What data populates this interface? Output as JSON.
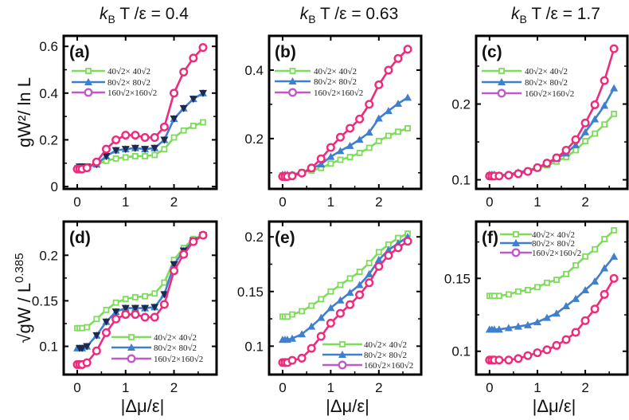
{
  "column_titles": [
    "k_B T / ε = 0.4",
    "k_B T / ε = 0.63",
    "k_B T / ε = 1.7"
  ],
  "column_titles_parts": [
    {
      "k": "k",
      "sub": "B",
      "rest": "T /ε = 0.4"
    },
    {
      "k": "k",
      "sub": "B",
      "rest": "T /ε = 0.63"
    },
    {
      "k": "k",
      "sub": "B",
      "rest": "T /ε = 1.7"
    }
  ],
  "ylabel_top": "gW²/ ln L",
  "ylabel_bottom": "√g W / L^0.385",
  "ylabel_bottom_parts": {
    "main": "√gW / L",
    "sup": "0.385"
  },
  "xlabel": "|Δμ/ε|",
  "colors": {
    "green": "#7ddc5a",
    "blue": "#3f7fcf",
    "pink": "#ee2a7b",
    "legend_pink": "#c259c8",
    "navy": "#1c2a50"
  },
  "legend_labels": [
    "40√2× 40√2",
    "80√2× 80√2",
    "160√2×160√2"
  ],
  "chart_data": [
    {
      "type": "line",
      "panel": "(a)",
      "title": "k_B T / ε = 0.4",
      "xlabel": "",
      "ylabel": "gW²/ ln L",
      "xlim": [
        -0.28,
        2.88
      ],
      "ylim": [
        -0.01,
        0.645
      ],
      "xticks": [
        0,
        1,
        2
      ],
      "yticks": [
        "0",
        "0.2",
        "0.4",
        "0.6"
      ],
      "yminor": [
        0.1,
        0.3,
        0.5
      ],
      "legend": "upper-left",
      "blue_overlay": "navy-down-triangle",
      "x": [
        0,
        0.05,
        0.1,
        0.2,
        0.4,
        0.6,
        0.8,
        1.0,
        1.2,
        1.4,
        1.6,
        1.8,
        2.0,
        2.2,
        2.4,
        2.6
      ],
      "series": [
        {
          "name": "40√2× 40√2",
          "values": [
            0.08,
            0.08,
            0.08,
            0.085,
            0.095,
            0.11,
            0.12,
            0.125,
            0.13,
            0.13,
            0.135,
            0.16,
            0.21,
            0.24,
            0.26,
            0.275
          ]
        },
        {
          "name": "80√2× 80√2",
          "values": [
            0.08,
            0.085,
            0.085,
            0.085,
            0.095,
            0.13,
            0.155,
            0.16,
            0.165,
            0.16,
            0.165,
            0.2,
            0.29,
            0.335,
            0.375,
            0.4
          ]
        },
        {
          "name": "160√2×160√2",
          "values": [
            0.075,
            0.075,
            0.075,
            0.08,
            0.105,
            0.16,
            0.2,
            0.22,
            0.22,
            0.21,
            0.21,
            0.255,
            0.4,
            0.49,
            0.55,
            0.595
          ]
        }
      ]
    },
    {
      "type": "line",
      "panel": "(b)",
      "title": "k_B T / ε = 0.63",
      "xlabel": "",
      "ylabel": "",
      "xlim": [
        -0.28,
        2.88
      ],
      "ylim": [
        0.053,
        0.5
      ],
      "xticks": [
        0,
        1,
        2
      ],
      "yticks": [
        "0.2",
        "0.4"
      ],
      "yminor": [
        0.1,
        0.3
      ],
      "legend": "upper-left",
      "x": [
        0,
        0.05,
        0.1,
        0.2,
        0.4,
        0.6,
        0.8,
        1.0,
        1.2,
        1.4,
        1.6,
        1.8,
        2.0,
        2.2,
        2.4,
        2.6
      ],
      "series": [
        {
          "name": "40√2× 40√2",
          "values": [
            0.093,
            0.093,
            0.093,
            0.094,
            0.102,
            0.106,
            0.114,
            0.127,
            0.138,
            0.146,
            0.158,
            0.173,
            0.193,
            0.208,
            0.22,
            0.23
          ]
        },
        {
          "name": "80√2× 80√2",
          "values": [
            0.095,
            0.095,
            0.095,
            0.095,
            0.1,
            0.112,
            0.125,
            0.147,
            0.164,
            0.179,
            0.197,
            0.218,
            0.259,
            0.281,
            0.302,
            0.32
          ]
        },
        {
          "name": "160√2×160√2",
          "values": [
            0.089,
            0.089,
            0.089,
            0.091,
            0.099,
            0.114,
            0.141,
            0.174,
            0.204,
            0.23,
            0.257,
            0.3,
            0.357,
            0.4,
            0.434,
            0.461
          ]
        }
      ]
    },
    {
      "type": "line",
      "panel": "(c)",
      "title": "k_B T / ε = 1.7",
      "xlabel": "",
      "ylabel": "",
      "xlim": [
        -0.28,
        2.88
      ],
      "ylim": [
        0.088,
        0.29
      ],
      "xticks": [
        0,
        1,
        2
      ],
      "yticks": [
        "0.1",
        "0.2"
      ],
      "yminor": [
        0.15,
        0.25
      ],
      "legend": "upper-left",
      "x": [
        0,
        0.05,
        0.1,
        0.2,
        0.4,
        0.6,
        0.8,
        1.0,
        1.2,
        1.4,
        1.6,
        1.8,
        2.0,
        2.2,
        2.4,
        2.6
      ],
      "series": [
        {
          "name": "40√2× 40√2",
          "values": [
            0.106,
            0.106,
            0.106,
            0.106,
            0.106,
            0.109,
            0.112,
            0.115,
            0.119,
            0.124,
            0.13,
            0.139,
            0.151,
            0.161,
            0.173,
            0.187
          ]
        },
        {
          "name": "80√2× 80√2",
          "values": [
            0.107,
            0.107,
            0.107,
            0.106,
            0.107,
            0.11,
            0.112,
            0.116,
            0.121,
            0.128,
            0.135,
            0.146,
            0.163,
            0.18,
            0.198,
            0.221
          ]
        },
        {
          "name": "160√2×160√2",
          "values": [
            0.105,
            0.105,
            0.105,
            0.105,
            0.106,
            0.108,
            0.111,
            0.116,
            0.122,
            0.129,
            0.139,
            0.153,
            0.175,
            0.199,
            0.231,
            0.273
          ]
        }
      ]
    },
    {
      "type": "line",
      "panel": "(d)",
      "title": "",
      "xlabel": "|Δμ/ε|",
      "ylabel": "√g W / L^0.385",
      "xlim": [
        -0.28,
        2.88
      ],
      "ylim": [
        0.069,
        0.237
      ],
      "xticks": [
        0,
        1,
        2
      ],
      "yticks": [
        "0.1",
        "0.15",
        "0.2"
      ],
      "yminor": [
        0.125,
        0.175
      ],
      "legend": "lower-right",
      "blue_overlay": "navy-down-triangle",
      "x": [
        0,
        0.05,
        0.1,
        0.2,
        0.4,
        0.6,
        0.8,
        1.0,
        1.2,
        1.4,
        1.6,
        1.8,
        2.0,
        2.2,
        2.4,
        2.6
      ],
      "series": [
        {
          "name": "40√2× 40√2",
          "values": [
            0.12,
            0.12,
            0.12,
            0.121,
            0.13,
            0.14,
            0.148,
            0.152,
            0.154,
            0.155,
            0.158,
            0.17,
            0.195,
            0.208,
            0.218,
            0.222
          ]
        },
        {
          "name": "80√2× 80√2",
          "values": [
            0.098,
            0.098,
            0.098,
            0.1,
            0.112,
            0.127,
            0.138,
            0.142,
            0.142,
            0.142,
            0.143,
            0.157,
            0.19,
            0.205,
            0.216,
            0.222
          ]
        },
        {
          "name": "160√2×160√2",
          "values": [
            0.08,
            0.08,
            0.08,
            0.082,
            0.095,
            0.115,
            0.13,
            0.135,
            0.135,
            0.132,
            0.132,
            0.146,
            0.183,
            0.201,
            0.215,
            0.222
          ]
        }
      ]
    },
    {
      "type": "line",
      "panel": "(e)",
      "title": "",
      "xlabel": "|Δμ/ε|",
      "ylabel": "",
      "xlim": [
        -0.28,
        2.88
      ],
      "ylim": [
        0.074,
        0.214
      ],
      "xticks": [
        0,
        1,
        2
      ],
      "yticks": [
        "0.1",
        "0.15",
        "0.2"
      ],
      "yminor": [
        0.125,
        0.175
      ],
      "legend": "lower-right",
      "x": [
        0,
        0.05,
        0.1,
        0.2,
        0.4,
        0.6,
        0.8,
        1.0,
        1.2,
        1.4,
        1.6,
        1.8,
        2.0,
        2.2,
        2.4,
        2.6
      ],
      "series": [
        {
          "name": "40√2× 40√2",
          "values": [
            0.127,
            0.127,
            0.127,
            0.129,
            0.132,
            0.137,
            0.143,
            0.15,
            0.156,
            0.162,
            0.168,
            0.176,
            0.186,
            0.193,
            0.199,
            0.203
          ]
        },
        {
          "name": "80√2× 80√2",
          "values": [
            0.106,
            0.106,
            0.106,
            0.107,
            0.111,
            0.118,
            0.126,
            0.135,
            0.142,
            0.149,
            0.156,
            0.166,
            0.179,
            0.188,
            0.194,
            0.2
          ]
        },
        {
          "name": "160√2×160√2",
          "values": [
            0.085,
            0.085,
            0.085,
            0.087,
            0.089,
            0.098,
            0.109,
            0.121,
            0.13,
            0.138,
            0.147,
            0.158,
            0.173,
            0.183,
            0.19,
            0.196
          ]
        }
      ]
    },
    {
      "type": "line",
      "panel": "(f)",
      "title": "",
      "xlabel": "|Δμ/ε|",
      "ylabel": "",
      "xlim": [
        -0.28,
        2.88
      ],
      "ylim": [
        0.084,
        0.189
      ],
      "xticks": [
        0,
        1,
        2
      ],
      "yticks": [
        "0.1",
        "0.15"
      ],
      "yminor": [
        0.125,
        0.175
      ],
      "legend": "upper-right",
      "x": [
        0,
        0.05,
        0.1,
        0.2,
        0.4,
        0.6,
        0.8,
        1.0,
        1.2,
        1.4,
        1.6,
        1.8,
        2.0,
        2.2,
        2.4,
        2.6
      ],
      "series": [
        {
          "name": "40√2× 40√2",
          "values": [
            0.138,
            0.138,
            0.138,
            0.138,
            0.139,
            0.141,
            0.142,
            0.144,
            0.147,
            0.149,
            0.153,
            0.159,
            0.165,
            0.17,
            0.177,
            0.183
          ]
        },
        {
          "name": "80√2× 80√2",
          "values": [
            0.115,
            0.115,
            0.115,
            0.115,
            0.116,
            0.117,
            0.118,
            0.12,
            0.123,
            0.126,
            0.131,
            0.136,
            0.142,
            0.148,
            0.157,
            0.165
          ]
        },
        {
          "name": "160√2×160√2",
          "values": [
            0.094,
            0.094,
            0.094,
            0.094,
            0.094,
            0.095,
            0.097,
            0.099,
            0.101,
            0.104,
            0.108,
            0.113,
            0.121,
            0.129,
            0.139,
            0.15
          ]
        }
      ]
    }
  ]
}
